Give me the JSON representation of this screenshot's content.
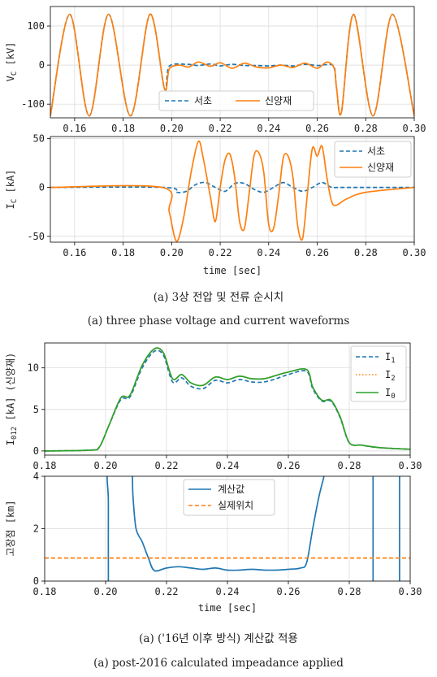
{
  "colors": {
    "blue": "#1f77b4",
    "orange": "#ff7f0e",
    "green": "#2ca02c",
    "grid": "#d8d8d8"
  },
  "captions": {
    "top_ko": "(a) 3상 전압 및 전류 순시치",
    "top_en": "(a) three phase voltage and current waveforms",
    "bottom_ko": "(a) ('16년 이후 방식) 계산값 적용",
    "bottom_en": "(a) post-2016 calculated impeadance applied"
  },
  "chart_data": [
    {
      "type": "line",
      "ylabel": "V_C [kV]",
      "xlabel": "",
      "xlim": [
        0.15,
        0.3
      ],
      "ylim": [
        -135,
        150
      ],
      "xticks": [
        "0.16",
        "0.18",
        "0.20",
        "0.22",
        "0.24",
        "0.26",
        "0.28",
        "0.30"
      ],
      "yticks": [
        "100",
        "0",
        "-100"
      ],
      "grid": true,
      "legend": "bottom-center, horizontal",
      "series": [
        {
          "name": "서초",
          "style": "dashed",
          "color": "#1f77b4",
          "x": [
            0.15,
            0.158,
            0.166,
            0.174,
            0.183,
            0.191,
            0.197,
            0.199,
            0.206,
            0.211,
            0.216,
            0.22,
            0.225,
            0.23,
            0.235,
            0.24,
            0.245,
            0.25,
            0.255,
            0.26,
            0.264,
            0.267,
            0.268,
            0.27,
            0.275,
            0.283,
            0.291,
            0.3
          ],
          "y": [
            -130,
            130,
            -130,
            130,
            -130,
            130,
            -60,
            -3,
            2,
            -1,
            3,
            -2,
            2,
            -1,
            -1,
            -2,
            0,
            -2,
            2,
            -1,
            1,
            -5,
            -60,
            -120,
            130,
            -130,
            130,
            -130
          ]
        },
        {
          "name": "신양재",
          "style": "solid",
          "color": "#ff7f0e",
          "x": [
            0.15,
            0.158,
            0.166,
            0.174,
            0.183,
            0.191,
            0.197,
            0.199,
            0.203,
            0.207,
            0.211,
            0.216,
            0.22,
            0.225,
            0.23,
            0.235,
            0.24,
            0.245,
            0.25,
            0.255,
            0.26,
            0.264,
            0.267,
            0.268,
            0.27,
            0.275,
            0.283,
            0.291,
            0.3
          ],
          "y": [
            -130,
            130,
            -130,
            130,
            -130,
            130,
            -60,
            -10,
            0,
            -5,
            8,
            -3,
            6,
            -8,
            5,
            -5,
            -7,
            0,
            -6,
            5,
            -8,
            8,
            -8,
            -60,
            -120,
            130,
            -130,
            130,
            -130
          ]
        }
      ]
    },
    {
      "type": "line",
      "ylabel": "I_C [kA]",
      "xlabel": "time [sec]",
      "xlim": [
        0.15,
        0.3
      ],
      "ylim": [
        -56,
        52
      ],
      "xticks": [
        "0.16",
        "0.18",
        "0.20",
        "0.22",
        "0.24",
        "0.26",
        "0.28",
        "0.30"
      ],
      "yticks": [
        "50",
        "0",
        "-50"
      ],
      "grid": true,
      "legend": "top-right",
      "series": [
        {
          "name": "서초",
          "style": "dashed",
          "color": "#1f77b4",
          "x": [
            0.15,
            0.197,
            0.202,
            0.206,
            0.21,
            0.214,
            0.218,
            0.222,
            0.226,
            0.23,
            0.234,
            0.238,
            0.242,
            0.246,
            0.25,
            0.254,
            0.258,
            0.262,
            0.266,
            0.27,
            0.3
          ],
          "y": [
            0,
            0,
            -5,
            -4,
            3,
            5,
            0,
            -4,
            4,
            4,
            -2,
            -5,
            0,
            5,
            0,
            -4,
            0,
            5,
            0,
            0,
            0
          ]
        },
        {
          "name": "신양재",
          "style": "solid",
          "color": "#ff7f0e",
          "x": [
            0.15,
            0.196,
            0.199,
            0.202,
            0.205,
            0.208,
            0.211,
            0.213,
            0.216,
            0.218,
            0.22,
            0.222,
            0.224,
            0.226,
            0.228,
            0.23,
            0.232,
            0.234,
            0.236,
            0.238,
            0.24,
            0.242,
            0.244,
            0.246,
            0.248,
            0.25,
            0.252,
            0.254,
            0.256,
            0.258,
            0.26,
            0.262,
            0.264,
            0.266,
            0.268,
            0.272,
            0.28,
            0.3
          ],
          "y": [
            0,
            0,
            -25,
            -55,
            -30,
            15,
            47,
            30,
            -10,
            -35,
            0,
            28,
            34,
            10,
            -35,
            -42,
            -5,
            33,
            35,
            15,
            -38,
            -42,
            -10,
            30,
            32,
            10,
            -40,
            -52,
            -5,
            40,
            32,
            42,
            10,
            -15,
            -18,
            -12,
            -5,
            0
          ]
        }
      ]
    },
    {
      "type": "line",
      "ylabel": "I_012 [kA] (신양재)",
      "xlabel": "",
      "xlim": [
        0.18,
        0.3
      ],
      "ylim": [
        -0.5,
        13
      ],
      "xticks": [
        "0.18",
        "0.20",
        "0.22",
        "0.24",
        "0.26",
        "0.28",
        "0.30"
      ],
      "yticks": [
        "10",
        "5",
        "0"
      ],
      "grid": true,
      "legend": "top-right",
      "series": [
        {
          "name": "I1",
          "style": "dashed",
          "color": "#1f77b4",
          "x": [
            0.18,
            0.195,
            0.198,
            0.201,
            0.205,
            0.208,
            0.212,
            0.216,
            0.219,
            0.222,
            0.225,
            0.228,
            0.232,
            0.236,
            0.24,
            0.244,
            0.248,
            0.252,
            0.256,
            0.26,
            0.266,
            0.268,
            0.271,
            0.274,
            0.277,
            0.28,
            0.284,
            0.29,
            0.3
          ],
          "y": [
            0,
            0.1,
            0.5,
            3.0,
            6.2,
            6.5,
            10.0,
            12.0,
            11.5,
            8.3,
            8.8,
            7.8,
            7.5,
            8.5,
            8.2,
            8.6,
            8.3,
            8.3,
            8.7,
            9.2,
            9.6,
            7.5,
            6.0,
            6.0,
            4.0,
            1.0,
            0.7,
            0.4,
            0.2
          ]
        },
        {
          "name": "I2",
          "style": "dotted",
          "color": "#ff7f0e",
          "x": [
            0.18,
            0.195,
            0.198,
            0.201,
            0.205,
            0.208,
            0.212,
            0.216,
            0.219,
            0.222,
            0.225,
            0.228,
            0.232,
            0.236,
            0.24,
            0.244,
            0.248,
            0.252,
            0.256,
            0.26,
            0.266,
            0.268,
            0.271,
            0.274,
            0.277,
            0.28,
            0.284,
            0.29,
            0.3
          ],
          "y": [
            0,
            0.1,
            0.5,
            3.0,
            6.4,
            6.7,
            10.3,
            12.3,
            11.8,
            8.7,
            9.2,
            8.2,
            7.9,
            8.9,
            8.6,
            9.0,
            8.7,
            8.7,
            9.1,
            9.5,
            9.8,
            7.7,
            6.1,
            6.1,
            4.1,
            1.0,
            0.7,
            0.4,
            0.2
          ]
        },
        {
          "name": "I0",
          "style": "solid",
          "color": "#2ca02c",
          "x": [
            0.18,
            0.195,
            0.198,
            0.201,
            0.205,
            0.208,
            0.212,
            0.216,
            0.219,
            0.222,
            0.225,
            0.228,
            0.232,
            0.236,
            0.24,
            0.244,
            0.248,
            0.252,
            0.256,
            0.26,
            0.266,
            0.268,
            0.271,
            0.274,
            0.277,
            0.28,
            0.284,
            0.29,
            0.3
          ],
          "y": [
            0,
            0.1,
            0.5,
            3.0,
            6.4,
            6.7,
            10.3,
            12.3,
            11.8,
            8.7,
            9.2,
            8.2,
            7.9,
            8.9,
            8.6,
            9.0,
            8.7,
            8.7,
            9.1,
            9.5,
            9.8,
            7.7,
            6.1,
            6.1,
            4.1,
            1.0,
            0.7,
            0.4,
            0.2
          ]
        }
      ]
    },
    {
      "type": "line",
      "ylabel": "고장점 [km]",
      "xlabel": "time [sec]",
      "xlim": [
        0.18,
        0.3
      ],
      "ylim": [
        0,
        4
      ],
      "xticks": [
        "0.18",
        "0.20",
        "0.22",
        "0.24",
        "0.26",
        "0.28",
        "0.30"
      ],
      "yticks": [
        "4",
        "2",
        "0"
      ],
      "grid": true,
      "legend": "top-center",
      "series": [
        {
          "name": "계산값",
          "style": "solid",
          "color": "#1f77b4",
          "x": [
            0.2009,
            0.2009,
            0.2011,
            0.2085,
            0.2088,
            0.209,
            0.21,
            0.212,
            0.214,
            0.216,
            0.22,
            0.224,
            0.228,
            0.232,
            0.236,
            0.24,
            0.244,
            0.248,
            0.252,
            0.256,
            0.26,
            0.264,
            0.266,
            0.268,
            0.27,
            0.2715,
            0.272
          ],
          "y": [
            0,
            3,
            4.2,
            4.2,
            4.0,
            3.2,
            2.0,
            1.5,
            0.9,
            0.4,
            0.5,
            0.55,
            0.5,
            0.45,
            0.5,
            0.42,
            0.42,
            0.45,
            0.42,
            0.42,
            0.45,
            0.5,
            0.7,
            2.0,
            3.2,
            3.9,
            4.2
          ]
        },
        {
          "name": "",
          "style": "solid",
          "color": "#1f77b4",
          "x": [
            0.2878,
            0.2878
          ],
          "y": [
            0,
            4.2
          ]
        },
        {
          "name": "",
          "style": "solid",
          "color": "#1f77b4",
          "x": [
            0.2965,
            0.2965
          ],
          "y": [
            0,
            4.2
          ]
        },
        {
          "name": "실제위치",
          "style": "dashed",
          "color": "#ff7f0e",
          "x": [
            0.18,
            0.3
          ],
          "y": [
            0.88,
            0.88
          ]
        }
      ]
    }
  ]
}
